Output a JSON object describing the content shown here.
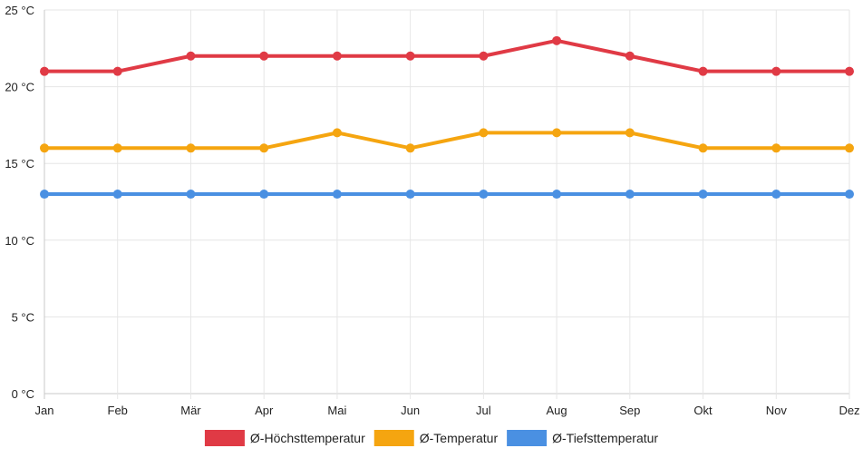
{
  "chart_data": {
    "type": "line",
    "categories": [
      "Jan",
      "Feb",
      "Mär",
      "Apr",
      "Mai",
      "Jun",
      "Jul",
      "Aug",
      "Sep",
      "Okt",
      "Nov",
      "Dez"
    ],
    "y_ticks": [
      "0 °C",
      "5 °C",
      "10 °C",
      "15 °C",
      "20 °C",
      "25 °C"
    ],
    "ylim": [
      0,
      25
    ],
    "y_step": 5,
    "grid": true,
    "legend_position": "bottom",
    "series": [
      {
        "name": "Ø-Höchsttemperatur",
        "color": "#e03a45",
        "values": [
          21,
          21,
          22,
          22,
          22,
          22,
          22,
          23,
          22,
          21,
          21,
          21
        ]
      },
      {
        "name": "Ø-Temperatur",
        "color": "#f5a510",
        "values": [
          16,
          16,
          16,
          16,
          17,
          16,
          17,
          17,
          17,
          16,
          16,
          16
        ]
      },
      {
        "name": "Ø-Tiefsttemperatur",
        "color": "#4a90e2",
        "values": [
          13,
          13,
          13,
          13,
          13,
          13,
          13,
          13,
          13,
          13,
          13,
          13
        ]
      }
    ]
  }
}
